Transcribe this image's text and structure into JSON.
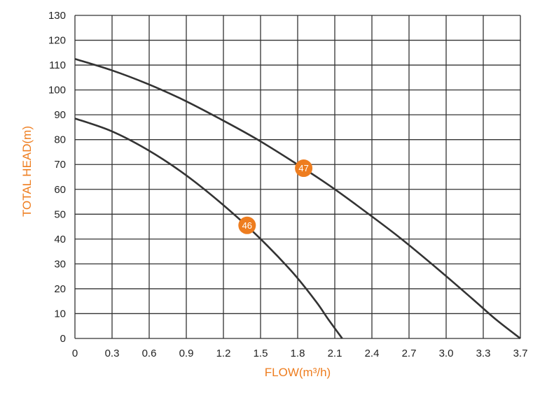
{
  "chart_data": {
    "type": "line",
    "xlabel": "FLOW(m³/h)",
    "ylabel": "TOTAL HEAD(m)",
    "xlim": [
      0,
      3.7
    ],
    "ylim": [
      0,
      130
    ],
    "x_ticks": [
      "0",
      "0.3",
      "0.6",
      "0.9",
      "1.2",
      "1.5",
      "1.8",
      "2.1",
      "2.4",
      "2.7",
      "3.0",
      "3.3",
      "3.7"
    ],
    "y_ticks": [
      "0",
      "10",
      "20",
      "30",
      "40",
      "50",
      "60",
      "70",
      "80",
      "90",
      "100",
      "110",
      "120",
      "130"
    ],
    "grid": true,
    "series": [
      {
        "name": "46",
        "points": [
          [
            0,
            88.5
          ],
          [
            0.3,
            83.5
          ],
          [
            0.6,
            76
          ],
          [
            0.9,
            66.5
          ],
          [
            1.2,
            55
          ],
          [
            1.5,
            42
          ],
          [
            1.8,
            27
          ],
          [
            2.0,
            15
          ],
          [
            2.1,
            8
          ],
          [
            2.22,
            0
          ]
        ],
        "label_at": [
          1.43,
          45.5
        ]
      },
      {
        "name": "47",
        "points": [
          [
            0,
            112.5
          ],
          [
            0.3,
            108
          ],
          [
            0.6,
            102.5
          ],
          [
            0.9,
            96
          ],
          [
            1.2,
            88.5
          ],
          [
            1.5,
            80.5
          ],
          [
            1.8,
            71.5
          ],
          [
            2.1,
            62
          ],
          [
            2.4,
            51.5
          ],
          [
            2.7,
            40.5
          ],
          [
            3.0,
            28.5
          ],
          [
            3.3,
            16
          ],
          [
            3.5,
            7.5
          ],
          [
            3.7,
            0
          ]
        ],
        "label_at": [
          1.9,
          68.5
        ]
      }
    ],
    "colors": {
      "curve": "#333333",
      "grid": "#333333",
      "badge": "#ee7d1f",
      "axis_title": "#ee7d1f"
    }
  }
}
